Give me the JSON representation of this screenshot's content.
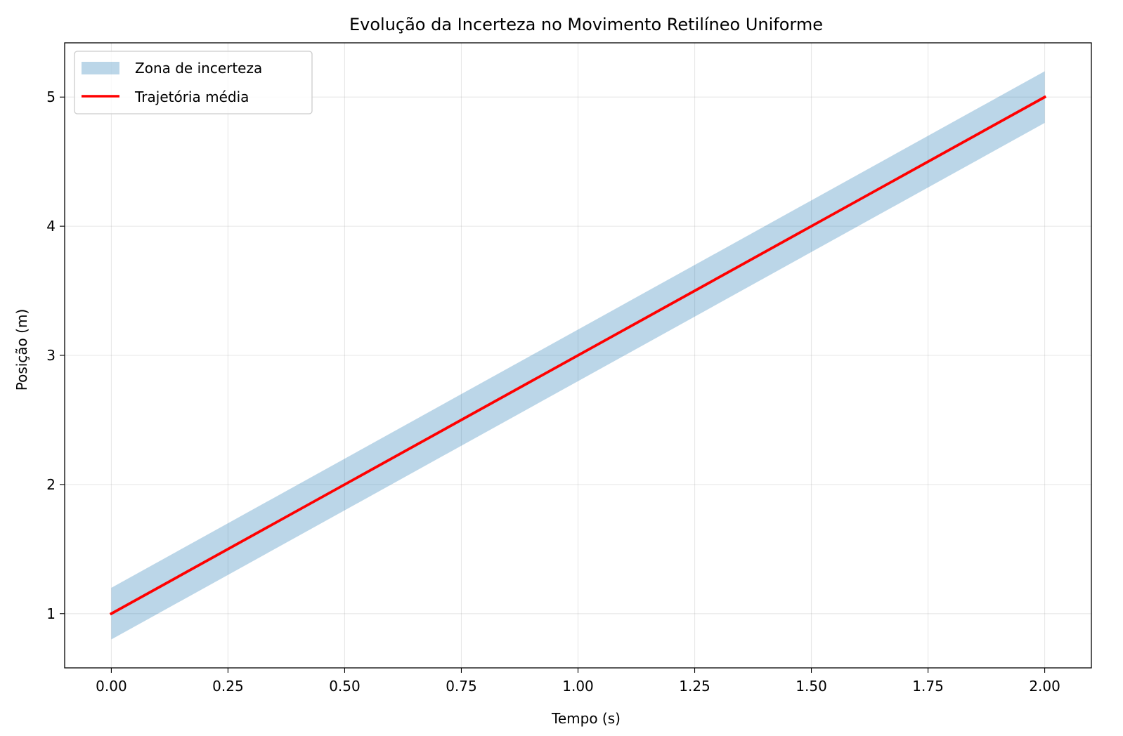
{
  "chart_data": {
    "type": "line",
    "title": "Evolução da Incerteza no Movimento Retilíneo Uniforme",
    "xlabel": "Tempo (s)",
    "ylabel": "Posição (m)",
    "xlim": [
      -0.1,
      2.1
    ],
    "ylim": [
      0.58,
      5.42
    ],
    "grid": true,
    "x_ticks": [
      0.0,
      0.25,
      0.5,
      0.75,
      1.0,
      1.25,
      1.5,
      1.75,
      2.0
    ],
    "x_tick_labels": [
      "0.00",
      "0.25",
      "0.50",
      "0.75",
      "1.00",
      "1.25",
      "1.50",
      "1.75",
      "2.00"
    ],
    "y_ticks": [
      1,
      2,
      3,
      4,
      5
    ],
    "y_tick_labels": [
      "1",
      "2",
      "3",
      "4",
      "5"
    ],
    "series": [
      {
        "name": "Trajetória média",
        "kind": "line",
        "color": "#ff0000",
        "x": [
          0.0,
          2.0
        ],
        "y": [
          1.0,
          5.0
        ]
      },
      {
        "name": "Zona de incerteza",
        "kind": "band",
        "color": "#1f77b4",
        "opacity": 0.3,
        "x": [
          0.0,
          2.0
        ],
        "y_lower": [
          0.8,
          4.8
        ],
        "y_upper": [
          1.2,
          5.2
        ]
      }
    ],
    "legend": {
      "position": "top-left",
      "entries": [
        {
          "label": "Zona de incerteza",
          "kind": "band"
        },
        {
          "label": "Trajetória média",
          "kind": "line"
        }
      ]
    }
  }
}
